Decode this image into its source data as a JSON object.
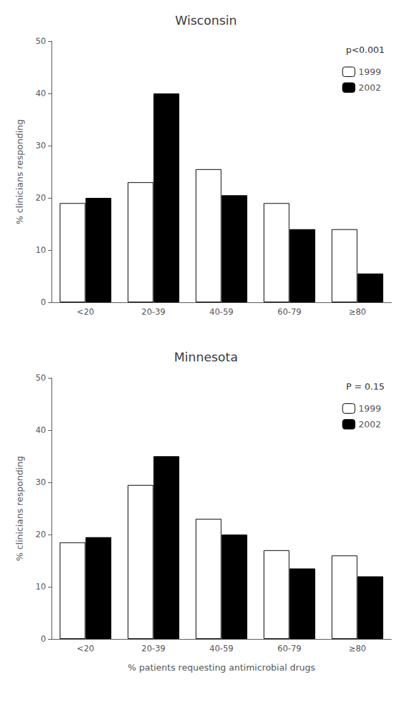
{
  "chart_data": [
    {
      "type": "bar",
      "title": "Wisconsin",
      "annotation": "p<0.001",
      "categories": [
        "<20",
        "20-39",
        "40-59",
        "60-79",
        "≥80"
      ],
      "series": [
        {
          "name": "1999",
          "color": "#ffffff",
          "values": [
            19,
            23,
            25.5,
            19,
            14
          ]
        },
        {
          "name": "2002",
          "color": "#000000",
          "values": [
            20,
            40,
            20.5,
            14,
            5.5
          ]
        }
      ],
      "y_label": "% clinicians responding",
      "ylim": [
        0,
        50
      ],
      "yticks": [
        0,
        10,
        20,
        30,
        40,
        50
      ],
      "grid": false,
      "legend": "upper right"
    },
    {
      "type": "bar",
      "title": "Minnesota",
      "annotation": "P = 0.15",
      "categories": [
        "<20",
        "20-39",
        "40-59",
        "60-79",
        "≥80"
      ],
      "series": [
        {
          "name": "1999",
          "color": "#ffffff",
          "values": [
            18.5,
            29.5,
            23,
            17,
            16
          ]
        },
        {
          "name": "2002",
          "color": "#000000",
          "values": [
            19.5,
            35,
            20,
            13.5,
            12
          ]
        }
      ],
      "x_label": "% patients requesting antimicrobial drugs",
      "y_label": "% clinicians responding",
      "ylim": [
        0,
        50
      ],
      "yticks": [
        0,
        10,
        20,
        30,
        40,
        50
      ],
      "grid": false,
      "legend": "upper right"
    }
  ]
}
